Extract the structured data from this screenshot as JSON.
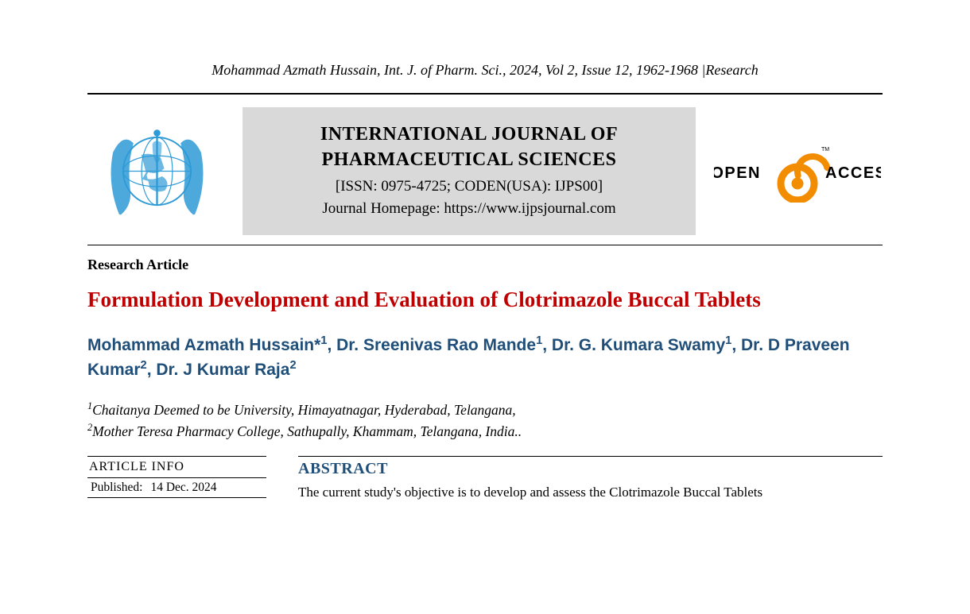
{
  "running_head": "Mohammad Azmath Hussain, Int. J. of Pharm. Sci., 2024, Vol 2, Issue 12, 1962-1968 |Research",
  "masthead": {
    "journal_title_line1": "INTERNATIONAL JOURNAL OF",
    "journal_title_line2": "PHARMACEUTICAL SCIENCES",
    "issn_line": "[ISSN: 0975-4725; CODEN(USA): IJPS00]",
    "homepage_line": "Journal Homepage: https://www.ijpsjournal.com",
    "open_access_left": "OPEN",
    "open_access_right": "ACCESS",
    "open_access_tm": "TM",
    "logo_color": "#2e9bd6",
    "oa_lock_color": "#f28c00",
    "box_bg": "#d9d9d9"
  },
  "article_type": "Research Article",
  "article_title": "Formulation Development and Evaluation of Clotrimazole Buccal Tablets",
  "authors_html": "Mohammad Azmath Hussain*<span class=\"sup\">1</span>, Dr. Sreenivas Rao Mande<span class=\"sup\">1</span>, Dr. G. Kumara Swamy<span class=\"sup\">1</span>, Dr. D Praveen Kumar<span class=\"sup\">2</span>, Dr. J Kumar Raja<span class=\"sup\">2</span>",
  "affiliations": [
    "<span class=\"sup\">1</span>Chaitanya Deemed to be University, Himayatnagar, Hyderabad, Telangana,",
    "<span class=\"sup\">2</span>Mother Teresa Pharmacy College, Sathupally, Khammam, Telangana, India.."
  ],
  "info": {
    "heading": "ARTICLE INFO",
    "rows": [
      {
        "label": "Published:",
        "value": "14 Dec. 2024"
      }
    ]
  },
  "abstract": {
    "heading": "ABSTRACT",
    "body": "The current study's objective is to develop and assess the Clotrimazole Buccal Tablets"
  },
  "colors": {
    "title_red": "#c00000",
    "author_blue": "#1f4e79",
    "rule": "#000000",
    "background": "#ffffff"
  },
  "typography": {
    "running_head_size_pt": 14,
    "journal_title_size_pt": 18,
    "article_title_size_pt": 20,
    "authors_size_pt": 16,
    "body_size_pt": 13
  }
}
